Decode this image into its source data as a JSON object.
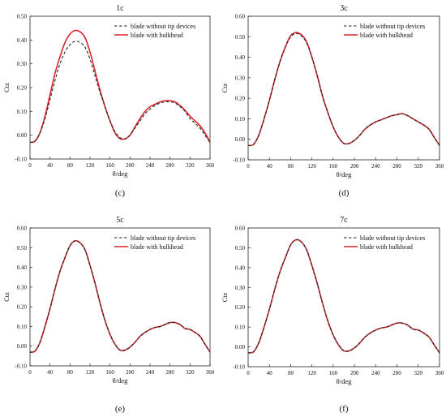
{
  "colors": {
    "solid_series": "#d9262b",
    "dashed_series": "#222222",
    "axis": "#222222"
  },
  "chart_data": [
    {
      "type": "line",
      "panel_label": "(c)",
      "title": "1c",
      "xlabel": "θ/deg",
      "ylabel": "Ctz",
      "xlim": [
        0,
        360
      ],
      "ylim": [
        -0.1,
        0.5
      ],
      "xticks": [
        "0",
        "40",
        "80",
        "120",
        "160",
        "200",
        "240",
        "280",
        "320",
        "360"
      ],
      "yticks": [
        "-0.10",
        "0.00",
        "0.10",
        "0.20",
        "0.30",
        "0.40",
        "0.50"
      ],
      "legend_position": "top-right",
      "grid": false,
      "x": [
        0,
        10,
        20,
        30,
        40,
        50,
        60,
        70,
        80,
        90,
        100,
        110,
        120,
        130,
        140,
        150,
        160,
        170,
        180,
        190,
        200,
        210,
        220,
        230,
        240,
        250,
        260,
        270,
        280,
        290,
        300,
        310,
        320,
        330,
        340,
        350,
        360
      ],
      "series": [
        {
          "name": "blade without tip devices",
          "style": "dashed",
          "values": [
            -0.03,
            -0.025,
            0.01,
            0.07,
            0.15,
            0.23,
            0.3,
            0.35,
            0.38,
            0.395,
            0.39,
            0.37,
            0.32,
            0.25,
            0.18,
            0.12,
            0.06,
            0.015,
            -0.01,
            -0.015,
            0.0,
            0.03,
            0.06,
            0.09,
            0.11,
            0.125,
            0.135,
            0.14,
            0.14,
            0.135,
            0.12,
            0.1,
            0.07,
            0.05,
            0.03,
            0.0,
            -0.03
          ]
        },
        {
          "name": "blade with bulkhead",
          "style": "solid",
          "values": [
            -0.03,
            -0.025,
            0.01,
            0.08,
            0.17,
            0.26,
            0.33,
            0.39,
            0.425,
            0.44,
            0.435,
            0.41,
            0.35,
            0.27,
            0.19,
            0.12,
            0.06,
            0.01,
            -0.015,
            -0.015,
            0.0,
            0.035,
            0.07,
            0.1,
            0.12,
            0.13,
            0.14,
            0.145,
            0.145,
            0.14,
            0.125,
            0.105,
            0.08,
            0.06,
            0.04,
            0.01,
            -0.03
          ]
        }
      ]
    },
    {
      "type": "line",
      "panel_label": "(d)",
      "title": "3c",
      "xlabel": "θ/deg",
      "ylabel": "Ctz",
      "xlim": [
        0,
        360
      ],
      "ylim": [
        -0.1,
        0.6
      ],
      "xticks": [
        "0",
        "40",
        "80",
        "120",
        "160",
        "200",
        "240",
        "280",
        "320",
        "360"
      ],
      "yticks": [
        "-0.10",
        "0.00",
        "0.10",
        "0.20",
        "0.30",
        "0.40",
        "0.50",
        "0.60"
      ],
      "legend_position": "top-right",
      "grid": false,
      "x": [
        0,
        10,
        20,
        30,
        40,
        50,
        60,
        70,
        80,
        90,
        100,
        110,
        120,
        130,
        140,
        150,
        160,
        170,
        180,
        190,
        200,
        210,
        220,
        230,
        240,
        250,
        260,
        270,
        280,
        290,
        300,
        310,
        320,
        330,
        340,
        350,
        360
      ],
      "series": [
        {
          "name": "blade without tip devices",
          "style": "dashed",
          "values": [
            -0.03,
            -0.025,
            0.02,
            0.1,
            0.19,
            0.29,
            0.38,
            0.45,
            0.5,
            0.515,
            0.505,
            0.47,
            0.4,
            0.31,
            0.21,
            0.13,
            0.06,
            0.01,
            -0.02,
            -0.02,
            -0.005,
            0.02,
            0.05,
            0.07,
            0.085,
            0.095,
            0.105,
            0.115,
            0.12,
            0.125,
            0.115,
            0.1,
            0.085,
            0.07,
            0.05,
            0.01,
            -0.03
          ]
        },
        {
          "name": "blade with bulkhead",
          "style": "solid",
          "values": [
            -0.03,
            -0.025,
            0.02,
            0.1,
            0.19,
            0.29,
            0.38,
            0.45,
            0.505,
            0.52,
            0.51,
            0.475,
            0.4,
            0.31,
            0.21,
            0.13,
            0.06,
            0.01,
            -0.02,
            -0.02,
            -0.005,
            0.02,
            0.05,
            0.07,
            0.085,
            0.095,
            0.105,
            0.115,
            0.12,
            0.125,
            0.115,
            0.1,
            0.085,
            0.07,
            0.05,
            0.01,
            -0.03
          ]
        }
      ]
    },
    {
      "type": "line",
      "panel_label": "(e)",
      "title": "5c",
      "xlabel": "θ/deg",
      "ylabel": "Ctz",
      "xlim": [
        0,
        360
      ],
      "ylim": [
        -0.1,
        0.6
      ],
      "xticks": [
        "0",
        "40",
        "80",
        "120",
        "160",
        "200",
        "240",
        "280",
        "320",
        "360"
      ],
      "yticks": [
        "-0.10",
        "0.00",
        "0.10",
        "0.20",
        "0.30",
        "0.40",
        "0.50",
        "0.60"
      ],
      "legend_position": "top-right",
      "grid": false,
      "x": [
        0,
        10,
        20,
        30,
        40,
        50,
        60,
        70,
        80,
        90,
        100,
        110,
        120,
        130,
        140,
        150,
        160,
        170,
        180,
        190,
        200,
        210,
        220,
        230,
        240,
        250,
        260,
        270,
        280,
        290,
        300,
        310,
        320,
        330,
        340,
        350,
        360
      ],
      "series": [
        {
          "name": "blade without tip devices",
          "style": "dashed",
          "values": [
            -0.03,
            -0.025,
            0.02,
            0.1,
            0.19,
            0.29,
            0.38,
            0.45,
            0.51,
            0.535,
            0.525,
            0.49,
            0.41,
            0.32,
            0.22,
            0.13,
            0.06,
            0.01,
            -0.02,
            -0.02,
            -0.005,
            0.02,
            0.05,
            0.07,
            0.085,
            0.095,
            0.1,
            0.11,
            0.12,
            0.12,
            0.11,
            0.09,
            0.085,
            0.07,
            0.05,
            0.01,
            -0.03
          ]
        },
        {
          "name": "blade with bulkhead",
          "style": "solid",
          "values": [
            -0.03,
            -0.025,
            0.02,
            0.1,
            0.19,
            0.29,
            0.38,
            0.45,
            0.51,
            0.535,
            0.525,
            0.49,
            0.41,
            0.32,
            0.22,
            0.13,
            0.06,
            0.01,
            -0.02,
            -0.02,
            -0.005,
            0.02,
            0.05,
            0.07,
            0.085,
            0.095,
            0.1,
            0.11,
            0.12,
            0.12,
            0.11,
            0.09,
            0.085,
            0.07,
            0.05,
            0.01,
            -0.03
          ]
        }
      ]
    },
    {
      "type": "line",
      "panel_label": "(f)",
      "title": "7c",
      "xlabel": "θ/deg",
      "ylabel": "Ctz",
      "xlim": [
        0,
        360
      ],
      "ylim": [
        -0.1,
        0.6
      ],
      "xticks": [
        "0",
        "40",
        "80",
        "120",
        "160",
        "200",
        "240",
        "280",
        "320",
        "360"
      ],
      "yticks": [
        "-0.10",
        "0.00",
        "0.10",
        "0.20",
        "0.30",
        "0.40",
        "0.50",
        "0.60"
      ],
      "legend_position": "top-right",
      "grid": false,
      "x": [
        0,
        10,
        20,
        30,
        40,
        50,
        60,
        70,
        80,
        90,
        100,
        110,
        120,
        130,
        140,
        150,
        160,
        170,
        180,
        190,
        200,
        210,
        220,
        230,
        240,
        250,
        260,
        270,
        280,
        290,
        300,
        310,
        320,
        330,
        340,
        350,
        360
      ],
      "series": [
        {
          "name": "blade without tip devices",
          "style": "dashed",
          "values": [
            -0.03,
            -0.025,
            0.02,
            0.1,
            0.19,
            0.29,
            0.38,
            0.45,
            0.515,
            0.54,
            0.53,
            0.49,
            0.41,
            0.32,
            0.22,
            0.13,
            0.06,
            0.01,
            -0.02,
            -0.02,
            -0.005,
            0.02,
            0.05,
            0.07,
            0.085,
            0.095,
            0.1,
            0.11,
            0.12,
            0.12,
            0.11,
            0.09,
            0.085,
            0.07,
            0.05,
            0.01,
            -0.03
          ]
        },
        {
          "name": "blade with bulkhead",
          "style": "solid",
          "values": [
            -0.03,
            -0.025,
            0.02,
            0.1,
            0.19,
            0.29,
            0.38,
            0.45,
            0.515,
            0.54,
            0.53,
            0.49,
            0.41,
            0.32,
            0.22,
            0.13,
            0.06,
            0.01,
            -0.02,
            -0.02,
            -0.005,
            0.02,
            0.05,
            0.07,
            0.085,
            0.095,
            0.1,
            0.11,
            0.12,
            0.12,
            0.11,
            0.09,
            0.085,
            0.07,
            0.05,
            0.01,
            -0.03
          ]
        }
      ]
    }
  ]
}
